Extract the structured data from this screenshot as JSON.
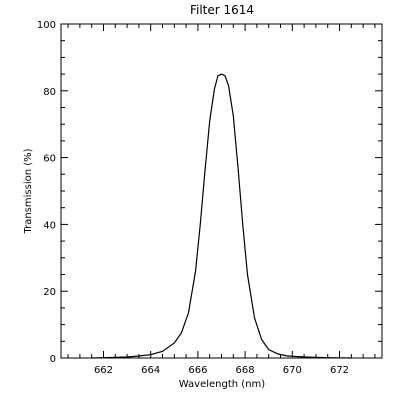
{
  "chart_data": {
    "type": "line",
    "title": "Filter 1614",
    "xlabel": "Wavelength (nm)",
    "ylabel": "Transmission (%)",
    "xlim": [
      660.2,
      673.8
    ],
    "ylim": [
      0,
      100
    ],
    "x_ticks": [
      662,
      664,
      666,
      668,
      670,
      672
    ],
    "y_ticks": [
      0,
      20,
      40,
      60,
      80,
      100
    ],
    "grid": false,
    "series": [
      {
        "color": "#000000",
        "x": [
          661.5,
          662.0,
          662.5,
          663.0,
          663.5,
          664.0,
          664.5,
          665.0,
          665.3,
          665.6,
          665.9,
          666.1,
          666.3,
          666.5,
          666.7,
          666.85,
          667.0,
          667.15,
          667.3,
          667.5,
          667.7,
          667.9,
          668.1,
          668.4,
          668.7,
          669.0,
          669.4,
          669.8,
          670.5,
          671.0,
          671.5,
          672.0,
          672.5
        ],
        "y": [
          0,
          0.1,
          0.2,
          0.3,
          0.6,
          1.0,
          2.0,
          4.5,
          7.5,
          13.5,
          26,
          40,
          56,
          71,
          80.5,
          84.5,
          85,
          84.5,
          81.5,
          72.5,
          57,
          40,
          25,
          12,
          5.5,
          2.5,
          1.2,
          0.6,
          0.3,
          0.2,
          0.1,
          0.05,
          0
        ]
      }
    ]
  }
}
